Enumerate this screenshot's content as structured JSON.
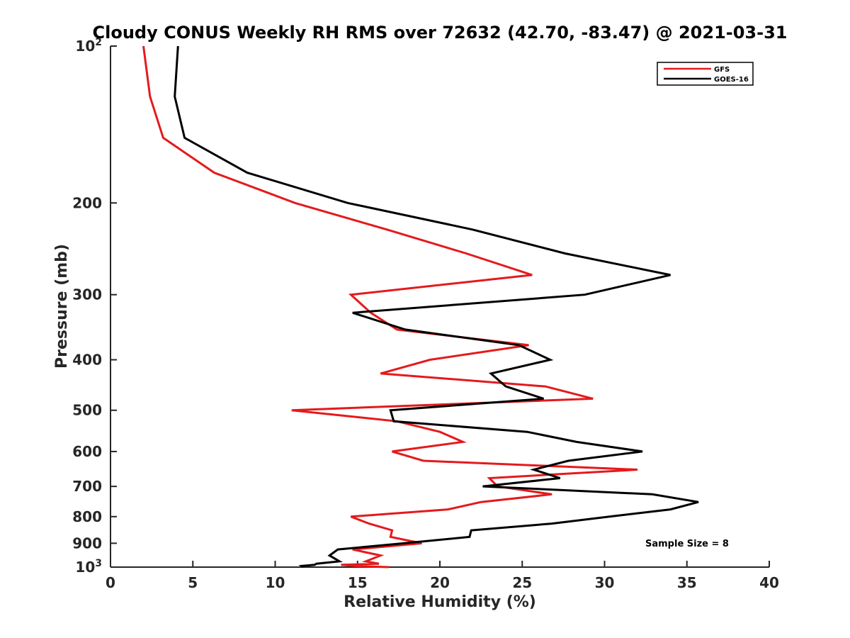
{
  "chart_data": {
    "type": "line",
    "title": "Cloudy CONUS Weekly RH RMS over 72632 (42.70, -83.47) @ 2021-03-31",
    "xlabel": "Relative Humidity (%)",
    "ylabel": "Pressure (mb)",
    "xlim": [
      0,
      40
    ],
    "ylim": [
      100,
      1000
    ],
    "y_scale": "log",
    "y_reversed": true,
    "grid": false,
    "legend_position": "top-right",
    "x_ticks": [
      0,
      5,
      10,
      15,
      20,
      25,
      30,
      35,
      40
    ],
    "x_tick_labels": [
      "0",
      "5",
      "10",
      "15",
      "20",
      "25",
      "30",
      "35",
      "40"
    ],
    "y_ticks": [
      {
        "value": 100,
        "base": "10",
        "exp": "2"
      },
      {
        "value": 200,
        "label": "200"
      },
      {
        "value": 300,
        "label": "300"
      },
      {
        "value": 400,
        "label": "400"
      },
      {
        "value": 500,
        "label": "500"
      },
      {
        "value": 600,
        "label": "600"
      },
      {
        "value": 700,
        "label": "700"
      },
      {
        "value": 800,
        "label": "800"
      },
      {
        "value": 900,
        "label": "900"
      },
      {
        "value": 1000,
        "base": "10",
        "exp": "3"
      }
    ],
    "annotation": "Sample Size = 8",
    "series": [
      {
        "name": "GFS",
        "color": "#e41a1c",
        "points": [
          {
            "x": 2.0,
            "y": 100
          },
          {
            "x": 2.4,
            "y": 125
          },
          {
            "x": 3.2,
            "y": 150
          },
          {
            "x": 6.3,
            "y": 175
          },
          {
            "x": 11.2,
            "y": 200
          },
          {
            "x": 16.8,
            "y": 225
          },
          {
            "x": 21.6,
            "y": 250
          },
          {
            "x": 25.6,
            "y": 275
          },
          {
            "x": 14.6,
            "y": 300
          },
          {
            "x": 15.8,
            "y": 325
          },
          {
            "x": 17.4,
            "y": 350
          },
          {
            "x": 25.4,
            "y": 375
          },
          {
            "x": 19.4,
            "y": 400
          },
          {
            "x": 16.4,
            "y": 425
          },
          {
            "x": 26.4,
            "y": 450
          },
          {
            "x": 29.3,
            "y": 475
          },
          {
            "x": 11.0,
            "y": 500
          },
          {
            "x": 17.4,
            "y": 525
          },
          {
            "x": 20.0,
            "y": 550
          },
          {
            "x": 21.4,
            "y": 575
          },
          {
            "x": 17.1,
            "y": 600
          },
          {
            "x": 19.0,
            "y": 625
          },
          {
            "x": 32.0,
            "y": 650
          },
          {
            "x": 23.0,
            "y": 675
          },
          {
            "x": 23.5,
            "y": 700
          },
          {
            "x": 26.8,
            "y": 725
          },
          {
            "x": 22.5,
            "y": 750
          },
          {
            "x": 20.5,
            "y": 775
          },
          {
            "x": 14.6,
            "y": 800
          },
          {
            "x": 15.7,
            "y": 825
          },
          {
            "x": 17.1,
            "y": 850
          },
          {
            "x": 17.0,
            "y": 875
          },
          {
            "x": 18.9,
            "y": 900
          },
          {
            "x": 14.7,
            "y": 925
          },
          {
            "x": 16.4,
            "y": 950
          },
          {
            "x": 15.5,
            "y": 975
          },
          {
            "x": 16.3,
            "y": 985
          },
          {
            "x": 14.0,
            "y": 990
          },
          {
            "x": 14.6,
            "y": 993
          },
          {
            "x": 15.0,
            "y": 996
          },
          {
            "x": 16.9,
            "y": 1000
          }
        ]
      },
      {
        "name": "GOES-16",
        "color": "#000000",
        "points": [
          {
            "x": 4.1,
            "y": 100
          },
          {
            "x": 3.9,
            "y": 125
          },
          {
            "x": 4.5,
            "y": 150
          },
          {
            "x": 8.3,
            "y": 175
          },
          {
            "x": 14.4,
            "y": 200
          },
          {
            "x": 22.0,
            "y": 225
          },
          {
            "x": 27.6,
            "y": 250
          },
          {
            "x": 34.0,
            "y": 275
          },
          {
            "x": 28.8,
            "y": 300
          },
          {
            "x": 14.7,
            "y": 325
          },
          {
            "x": 17.9,
            "y": 350
          },
          {
            "x": 24.8,
            "y": 375
          },
          {
            "x": 26.7,
            "y": 400
          },
          {
            "x": 23.1,
            "y": 425
          },
          {
            "x": 24.0,
            "y": 450
          },
          {
            "x": 26.3,
            "y": 475
          },
          {
            "x": 17.0,
            "y": 500
          },
          {
            "x": 17.2,
            "y": 525
          },
          {
            "x": 25.3,
            "y": 550
          },
          {
            "x": 28.3,
            "y": 575
          },
          {
            "x": 32.3,
            "y": 600
          },
          {
            "x": 27.8,
            "y": 625
          },
          {
            "x": 25.7,
            "y": 650
          },
          {
            "x": 27.3,
            "y": 675
          },
          {
            "x": 22.6,
            "y": 700
          },
          {
            "x": 32.9,
            "y": 725
          },
          {
            "x": 35.7,
            "y": 750
          },
          {
            "x": 34.0,
            "y": 775
          },
          {
            "x": 30.3,
            "y": 800
          },
          {
            "x": 26.8,
            "y": 825
          },
          {
            "x": 21.9,
            "y": 850
          },
          {
            "x": 21.8,
            "y": 875
          },
          {
            "x": 17.8,
            "y": 900
          },
          {
            "x": 13.8,
            "y": 925
          },
          {
            "x": 13.3,
            "y": 950
          },
          {
            "x": 13.9,
            "y": 975
          },
          {
            "x": 12.5,
            "y": 985
          },
          {
            "x": 12.4,
            "y": 990
          },
          {
            "x": 11.6,
            "y": 995
          },
          {
            "x": 11.7,
            "y": 1000
          }
        ]
      }
    ]
  }
}
